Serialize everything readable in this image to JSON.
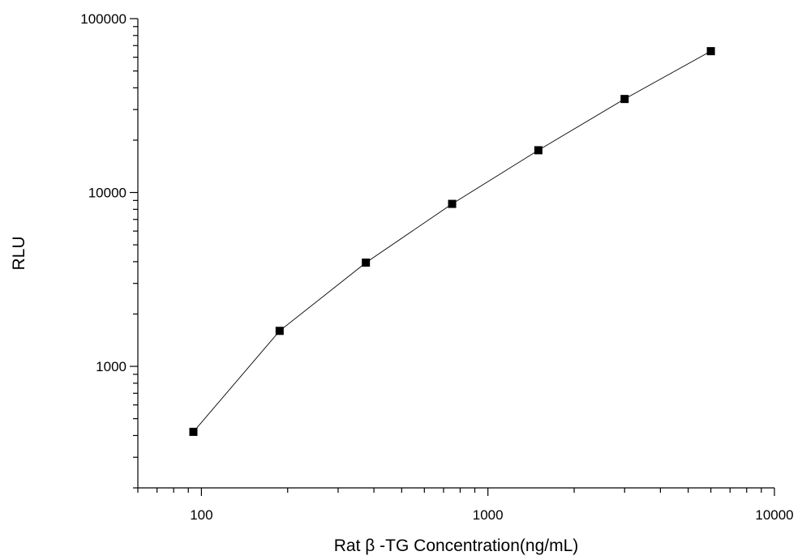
{
  "chart_data": {
    "type": "scatter",
    "title": "",
    "xlabel": "Rat β -TG Concentration(ng/mL)",
    "ylabel": "RLU",
    "x_scale": "log",
    "y_scale": "log",
    "xlim": [
      60,
      10000
    ],
    "ylim": [
      200,
      100000
    ],
    "x_ticks": [
      {
        "value": 100,
        "label": "100"
      },
      {
        "value": 1000,
        "label": "1000"
      },
      {
        "value": 10000,
        "label": "10000"
      }
    ],
    "y_ticks": [
      {
        "value": 1000,
        "label": "1000"
      },
      {
        "value": 10000,
        "label": "10000"
      },
      {
        "value": 100000,
        "label": "100000"
      }
    ],
    "grid": false,
    "legend": "none",
    "series": [
      {
        "marker": "square",
        "connected": true,
        "color": "#000000",
        "points": [
          {
            "x": 93.75,
            "y": 420
          },
          {
            "x": 187.5,
            "y": 1600
          },
          {
            "x": 375,
            "y": 3950
          },
          {
            "x": 750,
            "y": 8600
          },
          {
            "x": 1500,
            "y": 17500
          },
          {
            "x": 3000,
            "y": 34500
          },
          {
            "x": 6000,
            "y": 65000
          }
        ]
      }
    ]
  }
}
